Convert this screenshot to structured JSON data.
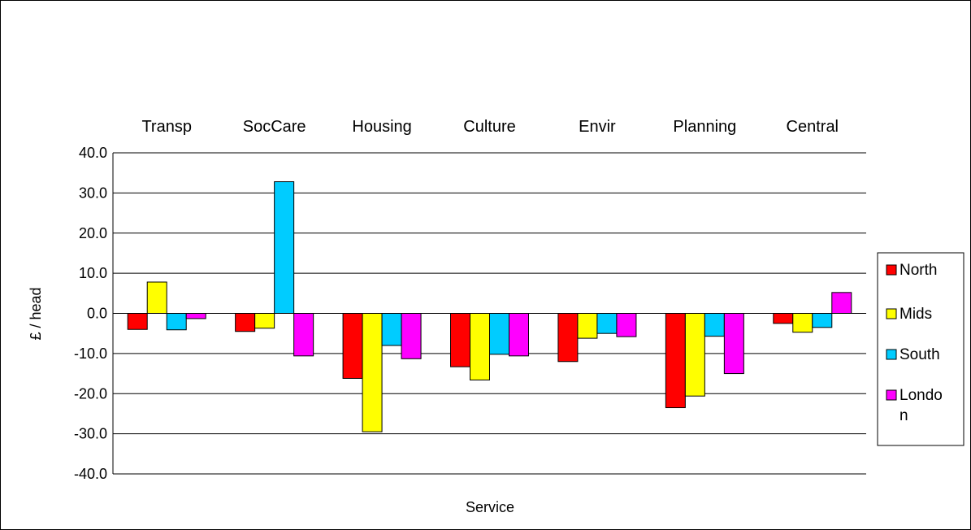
{
  "chart_data": {
    "type": "bar",
    "title": "",
    "xlabel": "Service",
    "ylabel": "£ / head",
    "ylim": [
      -40,
      40
    ],
    "yticks": [
      40,
      30,
      20,
      10,
      0,
      -10,
      -20,
      -30,
      -40
    ],
    "ytick_labels": [
      "40.0",
      "30.0",
      "20.0",
      "10.0",
      "0.0",
      "-10.0",
      "-20.0",
      "-30.0",
      "-40.0"
    ],
    "grid": true,
    "category_labels_position": "top",
    "legend_position": "right",
    "categories": [
      "Transp",
      "SocCare",
      "Housing",
      "Culture",
      "Envir",
      "Planning",
      "Central"
    ],
    "series": [
      {
        "name": "North",
        "color": "#FF0000",
        "values": [
          -4.0,
          -4.5,
          -16.2,
          -13.3,
          -12.0,
          -23.5,
          -2.5
        ]
      },
      {
        "name": "Mids",
        "color": "#FFFF00",
        "values": [
          7.8,
          -3.7,
          -29.5,
          -16.6,
          -6.2,
          -20.6,
          -4.7
        ]
      },
      {
        "name": "South",
        "color": "#00CCFF",
        "values": [
          -4.1,
          32.8,
          -8.0,
          -10.2,
          -5.0,
          -5.7,
          -3.5
        ]
      },
      {
        "name": "London",
        "legend_lines": [
          "Londo",
          "n"
        ],
        "color": "#FF00FF",
        "values": [
          -1.3,
          -10.6,
          -11.3,
          -10.6,
          -5.8,
          -15.0,
          5.2
        ]
      }
    ]
  }
}
